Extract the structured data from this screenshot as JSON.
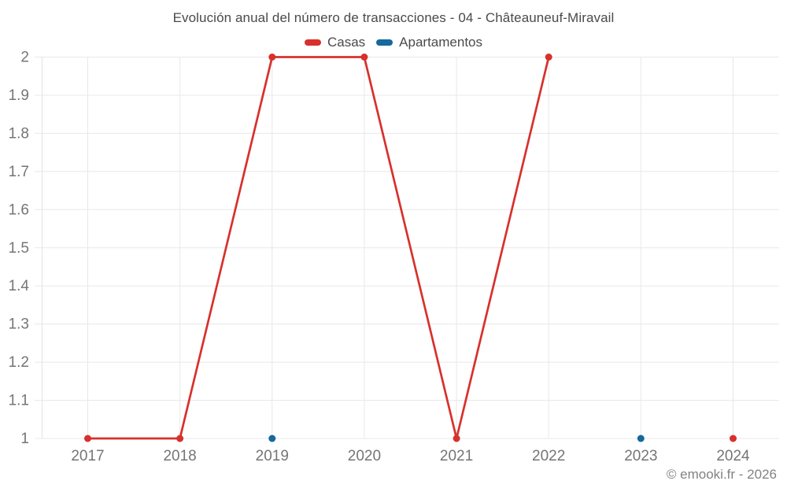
{
  "header": {
    "title": "Evolución anual del número de transacciones - 04 - Châteauneuf-Miravail"
  },
  "footer": {
    "copyright": "© emooki.fr - 2026"
  },
  "chart_data": {
    "type": "line",
    "title": "Evolución anual del número de transacciones - 04 - Châteauneuf-Miravail",
    "categories": [
      "2017",
      "2018",
      "2019",
      "2020",
      "2021",
      "2022",
      "2023",
      "2024"
    ],
    "series": [
      {
        "name": "Casas",
        "color": "#d7312c",
        "values": [
          1,
          1,
          2,
          2,
          1,
          2,
          null,
          1
        ]
      },
      {
        "name": "Apartamentos",
        "color": "#16689d",
        "values": [
          null,
          null,
          1,
          null,
          null,
          null,
          1,
          null
        ]
      }
    ],
    "ylim": [
      1,
      2
    ],
    "ytick_step": 0.1,
    "ytick_labels": [
      "1",
      "1.1",
      "1.2",
      "1.3",
      "1.4",
      "1.5",
      "1.6",
      "1.7",
      "1.8",
      "1.9",
      "2"
    ],
    "grid": true,
    "legend_position": "top",
    "grid_color": "#e8e8e8",
    "axis_line_color": "#e3e3e3",
    "tick_label_color": "#757575"
  }
}
